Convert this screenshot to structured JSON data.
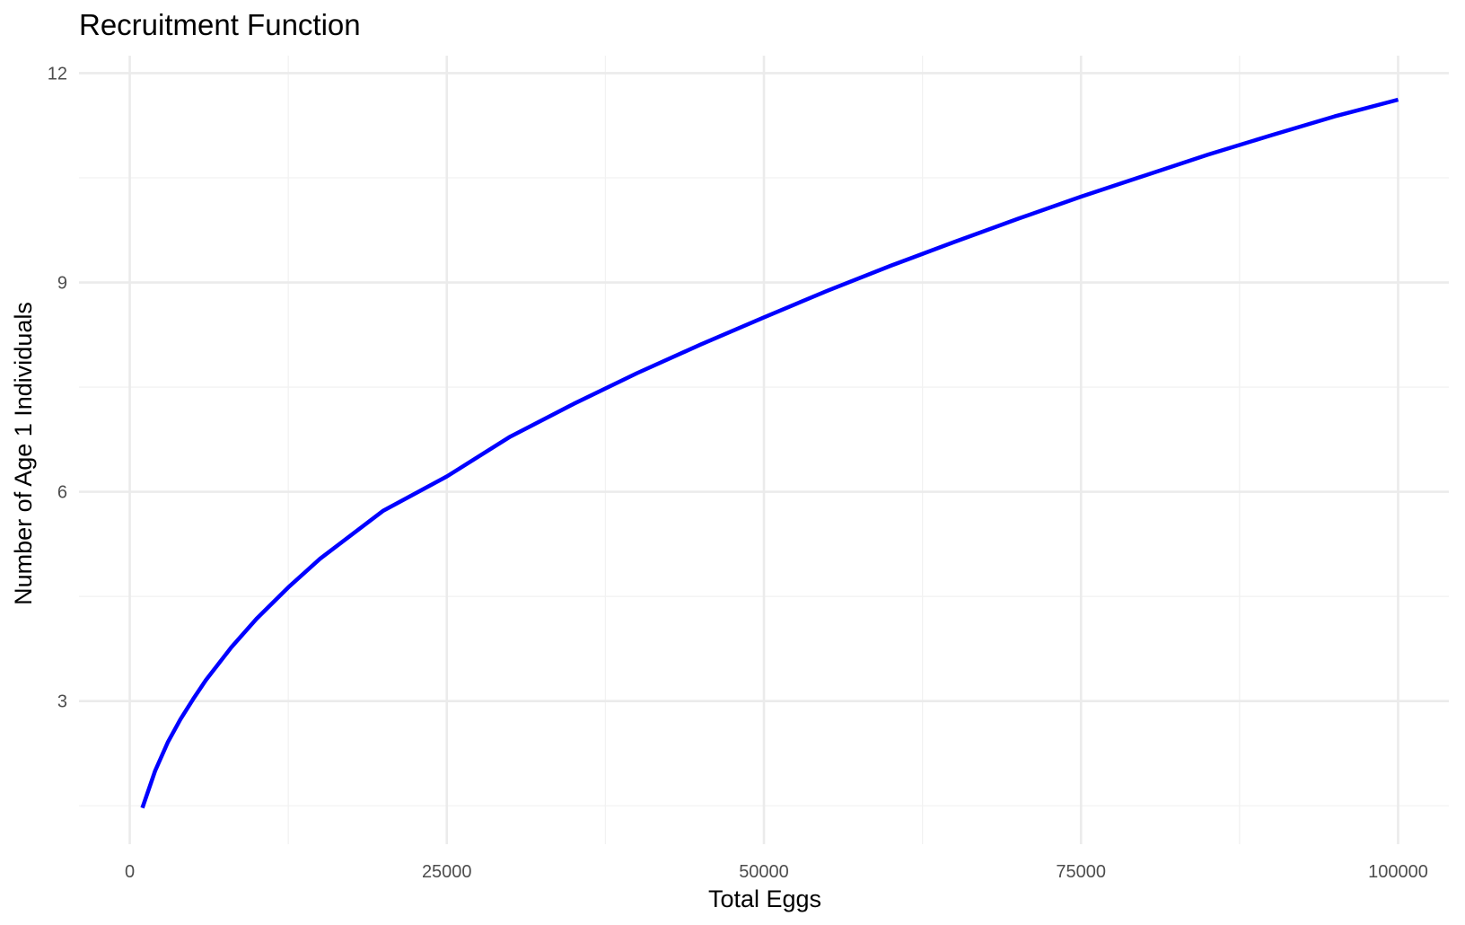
{
  "chart_data": {
    "type": "line",
    "title": "Recruitment Function",
    "xlabel": "Total Eggs",
    "ylabel": "Number of Age 1 Individuals",
    "xlim": [
      -4000,
      104000
    ],
    "ylim": [
      0.95,
      12.25
    ],
    "x_ticks": [
      0,
      25000,
      50000,
      75000,
      100000
    ],
    "x_tick_labels": [
      "0",
      "25000",
      "50000",
      "75000",
      "100000"
    ],
    "x_minor_ticks": [
      12500,
      37500,
      62500,
      87500
    ],
    "y_ticks": [
      3,
      6,
      9,
      12
    ],
    "y_tick_labels": [
      "3",
      "6",
      "9",
      "12"
    ],
    "y_minor_ticks": [
      1.5,
      4.5,
      7.5,
      10.5
    ],
    "grid": true,
    "legend": "none",
    "series": [
      {
        "color": "#0000ff",
        "x": [
          1000,
          2000,
          3000,
          4000,
          5000,
          6000,
          8000,
          10000,
          12500,
          15000,
          20000,
          25000,
          30000,
          35000,
          40000,
          45000,
          50000,
          55000,
          60000,
          65000,
          70000,
          75000,
          80000,
          85000,
          90000,
          95000,
          100000
        ],
        "y": [
          1.47,
          2.0,
          2.41,
          2.74,
          3.03,
          3.3,
          3.77,
          4.18,
          4.63,
          5.04,
          5.73,
          6.22,
          6.79,
          7.26,
          7.7,
          8.11,
          8.5,
          8.88,
          9.24,
          9.58,
          9.91,
          10.23,
          10.53,
          10.83,
          11.11,
          11.38,
          11.62
        ]
      }
    ]
  }
}
